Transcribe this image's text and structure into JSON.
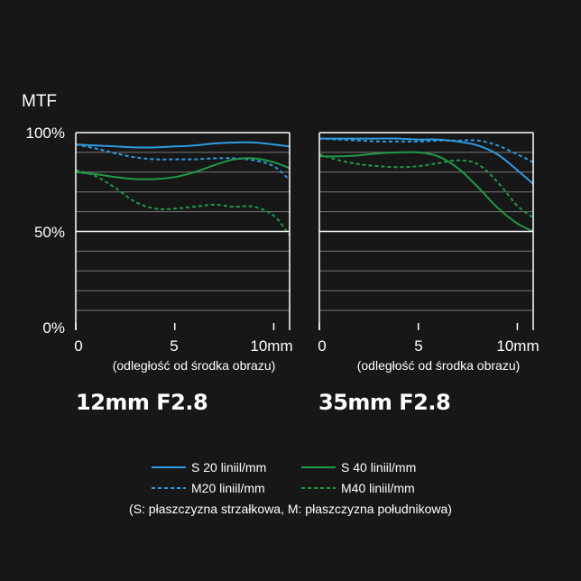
{
  "y_axis_title": "MTF",
  "y_ticks": [
    "100%",
    "50%",
    "0%"
  ],
  "x_axis_note": "(odległość od środka obrazu)",
  "colors": {
    "blue": "#2d9be0",
    "green": "#1f9a48",
    "frame": "#ffffff",
    "grid": "#777777",
    "bg": "#171717"
  },
  "legend": {
    "s20": "S 20 liniil/mm",
    "m20": "M20 liniil/mm",
    "s40": "S 40 liniil/mm",
    "m40": "M40 liniil/mm",
    "note": "(S: płaszczyzna strzałkowa, M: płaszczyzna południkowa)"
  },
  "chart_data": [
    {
      "type": "line",
      "title": "12mm F2.8",
      "x_ticks": [
        "0",
        "5",
        "10mm"
      ],
      "xlim": [
        0,
        10.8
      ],
      "ylim": [
        0,
        100
      ],
      "grid": true,
      "series": [
        {
          "name": "S 20 liniil/mm",
          "style": "solid",
          "color": "blue",
          "x": [
            0,
            1,
            2,
            3,
            4,
            5,
            6,
            7,
            8,
            9,
            10,
            10.8
          ],
          "y": [
            94,
            93.5,
            93,
            92.5,
            92.5,
            93,
            93.5,
            94.5,
            95,
            95,
            94,
            93
          ]
        },
        {
          "name": "M20 liniil/mm",
          "style": "dashed",
          "color": "blue",
          "x": [
            0,
            1,
            2,
            3,
            4,
            5,
            6,
            7,
            8,
            9,
            10,
            10.8
          ],
          "y": [
            94,
            92,
            89.5,
            87.5,
            86.5,
            86.5,
            86.5,
            87,
            87,
            86,
            83,
            76
          ]
        },
        {
          "name": "S 40 liniil/mm",
          "style": "solid",
          "color": "green",
          "x": [
            0,
            1,
            2,
            3,
            4,
            5,
            6,
            7,
            8,
            9,
            10,
            10.8
          ],
          "y": [
            80,
            79,
            77.5,
            76.5,
            76.5,
            77.5,
            80,
            83.5,
            86.5,
            87,
            85,
            82
          ]
        },
        {
          "name": "M40 liniil/mm",
          "style": "dashed",
          "color": "green",
          "x": [
            0,
            1,
            2,
            3,
            4,
            5,
            6,
            7,
            8,
            9,
            10,
            10.8
          ],
          "y": [
            81,
            78,
            72,
            65,
            61.5,
            61.5,
            62.5,
            63.5,
            62.5,
            62.5,
            58,
            48
          ]
        }
      ]
    },
    {
      "type": "line",
      "title": "35mm F2.8",
      "x_ticks": [
        "0",
        "5",
        "10mm"
      ],
      "xlim": [
        0,
        10.8
      ],
      "ylim": [
        0,
        100
      ],
      "grid": true,
      "series": [
        {
          "name": "S 20 liniil/mm",
          "style": "solid",
          "color": "blue",
          "x": [
            0,
            1,
            2,
            3,
            4,
            5,
            6,
            7,
            8,
            9,
            10,
            10.8
          ],
          "y": [
            97,
            97,
            97,
            97,
            97,
            96.5,
            96.5,
            95.5,
            93.5,
            89,
            81,
            74
          ]
        },
        {
          "name": "M20 liniil/mm",
          "style": "dashed",
          "color": "blue",
          "x": [
            0,
            1,
            2,
            3,
            4,
            5,
            6,
            7,
            8,
            9,
            10,
            10.8
          ],
          "y": [
            97,
            96.5,
            96,
            95.5,
            95.5,
            95.5,
            96,
            96,
            96,
            93.5,
            89,
            85
          ]
        },
        {
          "name": "S 40 liniil/mm",
          "style": "solid",
          "color": "green",
          "x": [
            0,
            1,
            2,
            3,
            4,
            5,
            6,
            7,
            8,
            9,
            10,
            10.8
          ],
          "y": [
            88,
            88,
            88.5,
            89.5,
            90,
            90,
            88,
            82,
            72.5,
            62,
            54,
            50
          ]
        },
        {
          "name": "M40 liniil/mm",
          "style": "dashed",
          "color": "green",
          "x": [
            0,
            1,
            2,
            3,
            4,
            5,
            6,
            7,
            8,
            9,
            10,
            10.8
          ],
          "y": [
            89,
            86,
            84,
            83,
            82.5,
            83,
            84.5,
            86,
            84,
            75,
            63,
            57
          ]
        }
      ]
    }
  ]
}
